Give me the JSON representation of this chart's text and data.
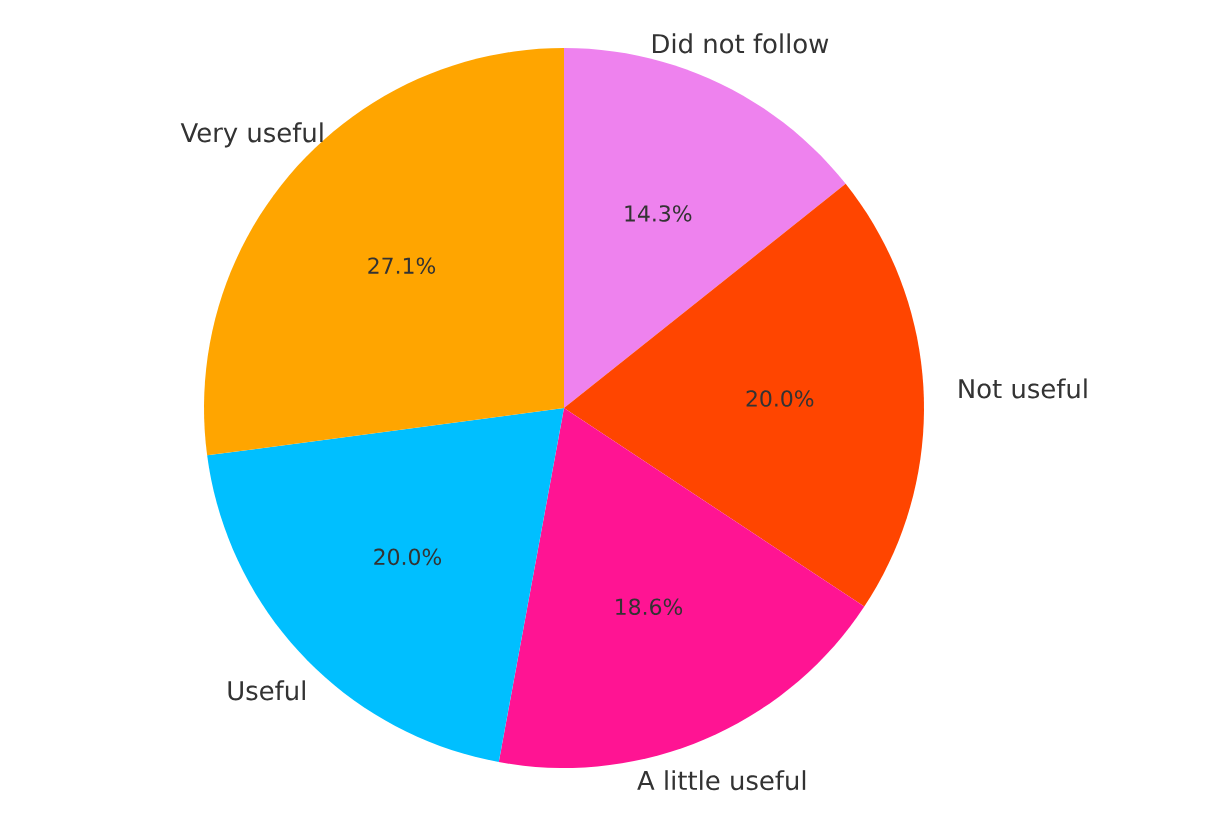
{
  "chart_data": {
    "type": "pie",
    "categories": [
      "Did not follow",
      "Not useful",
      "A little useful",
      "Useful",
      "Very useful"
    ],
    "values": [
      14.3,
      20.0,
      18.6,
      20.0,
      27.1
    ],
    "colors": [
      "#ee82ee",
      "#ff4500",
      "#ff1493",
      "#00bfff",
      "#ffa500"
    ],
    "value_labels": [
      "14.3%",
      "20.0%",
      "18.6%",
      "20.0%",
      "27.1%"
    ]
  }
}
